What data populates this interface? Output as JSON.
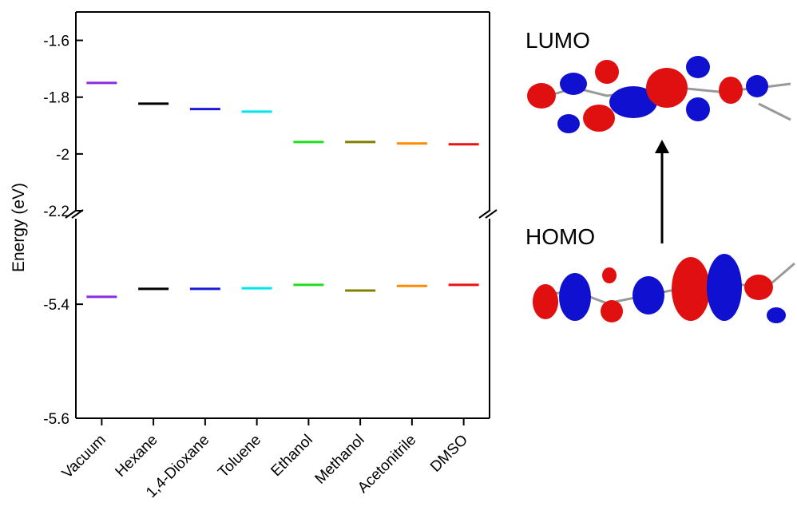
{
  "chart_data": {
    "type": "broken-level",
    "ylabel": "Energy (eV)",
    "categories": [
      "Vacuum",
      "Hexane",
      "1,4-Dioxane",
      "Toluene",
      "Ethanol",
      "Methanol",
      "Acetonitrile",
      "DMSO"
    ],
    "colors": [
      "#8a2be2",
      "#000000",
      "#1a1adc",
      "#00e5ee",
      "#22dd22",
      "#808000",
      "#ff8c00",
      "#ee1111"
    ],
    "panels": [
      {
        "ylim": [
          -2.2,
          -1.5
        ],
        "yticks": [
          -1.6,
          -1.8,
          -2.0,
          -2.2
        ],
        "values": [
          -1.75,
          -1.823,
          -1.842,
          -1.851,
          -1.958,
          -1.958,
          -1.963,
          -1.966
        ]
      },
      {
        "ylim": [
          -5.6,
          -5.25
        ],
        "yticks": [
          -5.4,
          -5.6
        ],
        "values": [
          -5.387,
          -5.373,
          -5.373,
          -5.372,
          -5.366,
          -5.376,
          -5.368,
          -5.366
        ]
      }
    ],
    "annotations": [
      "LUMO",
      "HOMO"
    ]
  }
}
